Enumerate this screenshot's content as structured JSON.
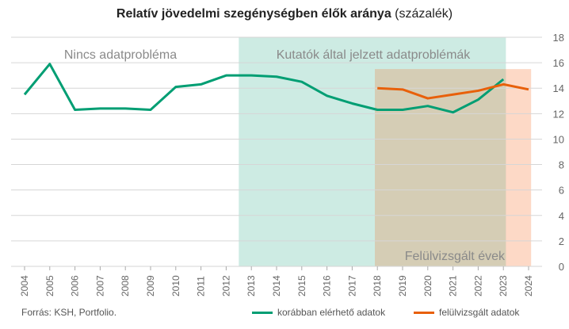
{
  "chart_data": {
    "type": "line",
    "title_bold": "Relatív jövedelmi szegénységben élők aránya",
    "title_suffix": " (százalék)",
    "x": [
      2004,
      2005,
      2006,
      2007,
      2008,
      2009,
      2010,
      2011,
      2012,
      2013,
      2014,
      2015,
      2016,
      2017,
      2018,
      2019,
      2020,
      2021,
      2022,
      2023,
      2024
    ],
    "ylim": [
      0,
      18
    ],
    "yticks": [
      0,
      2,
      4,
      6,
      8,
      10,
      12,
      14,
      16,
      18
    ],
    "y_axis_side": "right",
    "grid": true,
    "legend_placement": "bottom-right",
    "series": [
      {
        "name": "korábban elérhető adatok",
        "color": "#009e73",
        "x": [
          2004,
          2005,
          2006,
          2007,
          2008,
          2009,
          2010,
          2011,
          2012,
          2013,
          2014,
          2015,
          2016,
          2017,
          2018,
          2019,
          2020,
          2021,
          2022,
          2023
        ],
        "values": [
          13.5,
          15.9,
          12.3,
          12.4,
          12.4,
          12.3,
          14.1,
          14.3,
          15.0,
          15.0,
          14.9,
          14.5,
          13.4,
          12.8,
          12.3,
          12.3,
          12.6,
          12.1,
          13.1,
          14.7
        ]
      },
      {
        "name": "felülvizsgált adatok",
        "color": "#e8600a",
        "x": [
          2018,
          2019,
          2020,
          2021,
          2022,
          2023,
          2024
        ],
        "values": [
          14.0,
          13.9,
          13.2,
          13.5,
          13.8,
          14.3,
          13.9
        ]
      }
    ],
    "regions": [
      {
        "label": "Nincs adatprobléma",
        "from": 2003.7,
        "to": 2012.5,
        "color": null
      },
      {
        "label": "Kutatók által jelzett adatproblémák",
        "from": 2012.5,
        "to": 2023.1,
        "top": 18,
        "color": "#cdebe3"
      },
      {
        "label": "Felülvizsgált évek",
        "from": 2017.9,
        "to": 2024.1,
        "top": 15.5,
        "color": "#fdd9c6",
        "overlap_color": "#d5cdb5"
      }
    ]
  },
  "source": "Forrás:  KSH, Portfolio."
}
